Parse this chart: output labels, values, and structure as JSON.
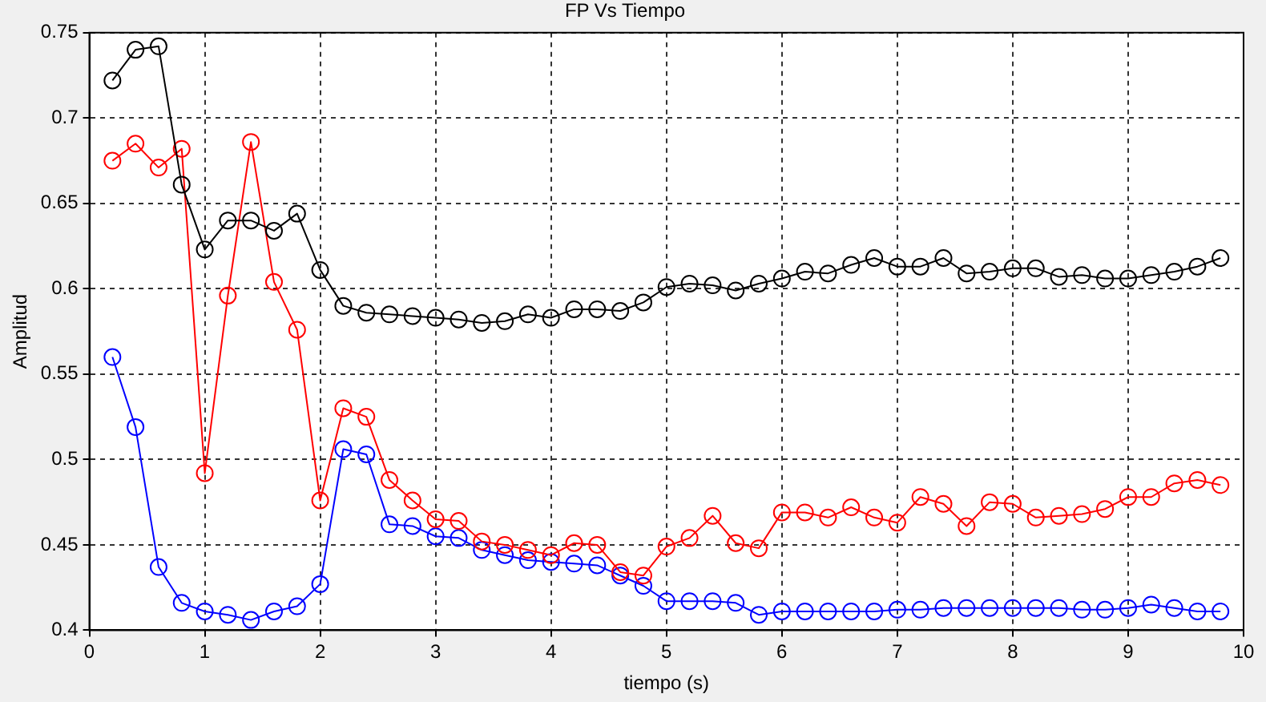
{
  "chart_data": {
    "type": "line",
    "title": "FP Vs Tiempo",
    "xlabel": "tiempo (s)",
    "ylabel": "Amplitud",
    "x": [
      0.2,
      0.4,
      0.6,
      0.8,
      1.0,
      1.2,
      1.4,
      1.6,
      1.8,
      2.0,
      2.2,
      2.4,
      2.6,
      2.8,
      3.0,
      3.2,
      3.4,
      3.6,
      3.8,
      4.0,
      4.2,
      4.4,
      4.6,
      4.8,
      5.0,
      5.2,
      5.4,
      5.6,
      5.8,
      6.0,
      6.2,
      6.4,
      6.6,
      6.8,
      7.0,
      7.2,
      7.4,
      7.6,
      7.8,
      8.0,
      8.2,
      8.4,
      8.6,
      8.8,
      9.0,
      9.2,
      9.4,
      9.6,
      9.8
    ],
    "series": [
      {
        "color": "#000000",
        "values": [
          0.722,
          0.74,
          0.742,
          0.661,
          0.623,
          0.64,
          0.64,
          0.634,
          0.644,
          0.611,
          0.59,
          0.586,
          0.585,
          0.584,
          0.583,
          0.582,
          0.58,
          0.581,
          0.585,
          0.583,
          0.588,
          0.588,
          0.587,
          0.592,
          0.601,
          0.603,
          0.602,
          0.599,
          0.603,
          0.606,
          0.61,
          0.609,
          0.614,
          0.618,
          0.613,
          0.613,
          0.618,
          0.609,
          0.61,
          0.612,
          0.612,
          0.607,
          0.608,
          0.606,
          0.606,
          0.608,
          0.61,
          0.613,
          0.618
        ]
      },
      {
        "color": "#ff0000",
        "values": [
          0.675,
          0.685,
          0.671,
          0.682,
          0.492,
          0.596,
          0.686,
          0.604,
          0.576,
          0.476,
          0.53,
          0.525,
          0.488,
          0.476,
          0.465,
          0.464,
          0.452,
          0.45,
          0.447,
          0.444,
          0.451,
          0.45,
          0.434,
          0.432,
          0.449,
          0.454,
          0.467,
          0.451,
          0.448,
          0.469,
          0.469,
          0.466,
          0.472,
          0.466,
          0.463,
          0.478,
          0.474,
          0.461,
          0.475,
          0.474,
          0.466,
          0.467,
          0.468,
          0.471,
          0.478,
          0.478,
          0.486,
          0.488,
          0.485
        ]
      },
      {
        "color": "#0000ff",
        "values": [
          0.56,
          0.519,
          0.437,
          0.416,
          0.411,
          0.409,
          0.406,
          0.411,
          0.414,
          0.427,
          0.506,
          0.503,
          0.462,
          0.461,
          0.455,
          0.454,
          0.447,
          0.444,
          0.441,
          0.44,
          0.439,
          0.438,
          0.432,
          0.426,
          0.417,
          0.417,
          0.417,
          0.416,
          0.409,
          0.411,
          0.411,
          0.411,
          0.411,
          0.411,
          0.412,
          0.412,
          0.413,
          0.413,
          0.413,
          0.413,
          0.413,
          0.413,
          0.412,
          0.412,
          0.413,
          0.415,
          0.413,
          0.411,
          0.411
        ]
      }
    ],
    "xlim": [
      0,
      10
    ],
    "xticks": [
      0,
      1,
      2,
      3,
      4,
      5,
      6,
      7,
      8,
      9,
      10
    ],
    "ylim": [
      0.4,
      0.75
    ],
    "yticks": [
      0.4,
      0.45,
      0.5,
      0.55,
      0.6,
      0.65,
      0.7,
      0.75
    ],
    "grid": true,
    "legend": false,
    "marker": "circle",
    "line_style": "solid"
  }
}
